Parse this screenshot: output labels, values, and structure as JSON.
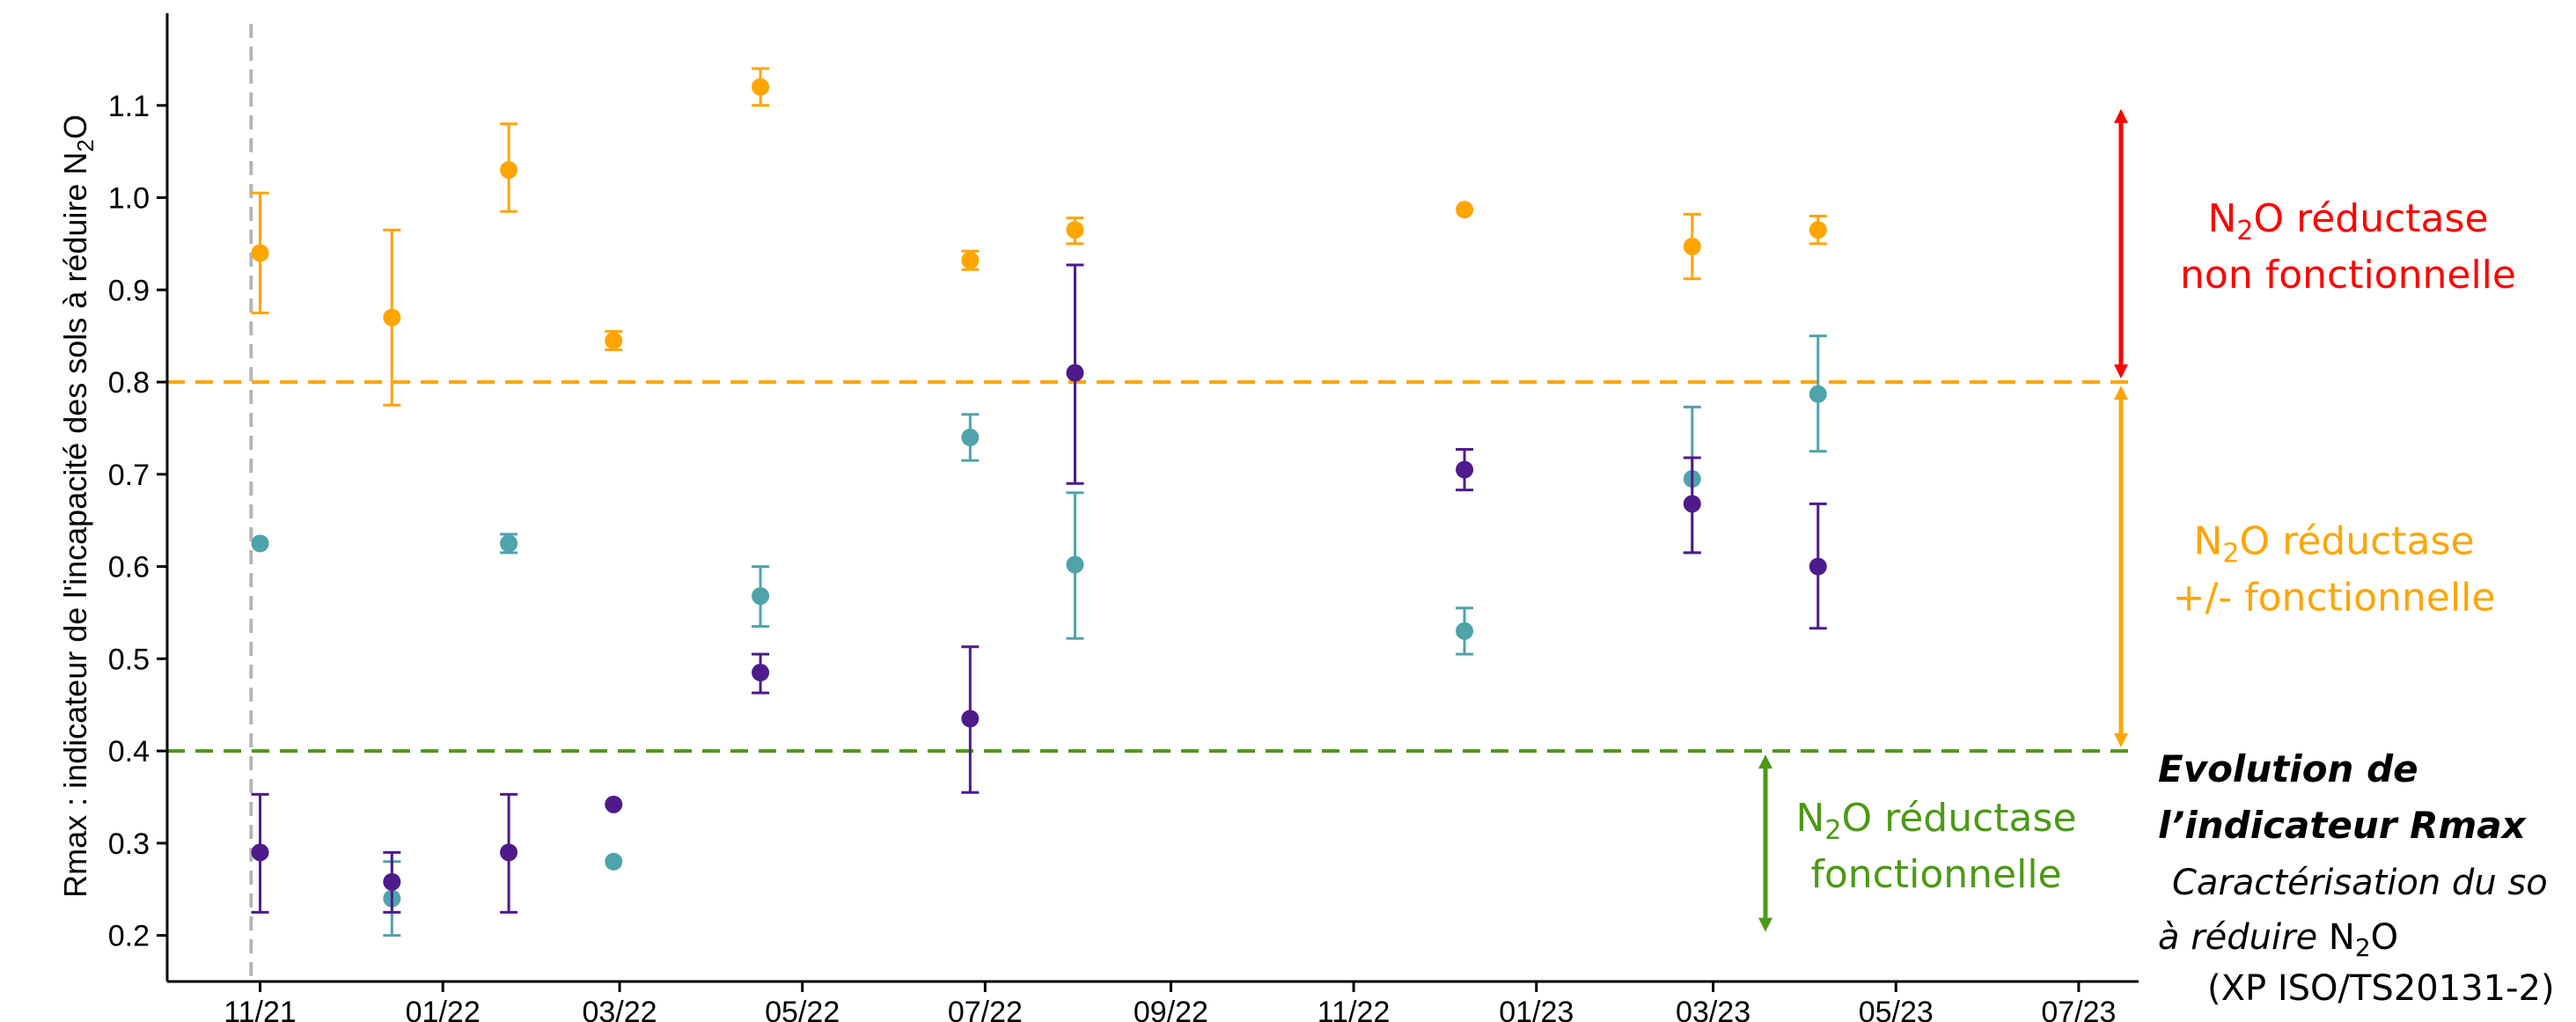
{
  "chart_data": {
    "type": "scatter",
    "ylabel_main": "Rmax : indicateur de l'incapacité des sols à réduire N",
    "ylabel_sub": "2",
    "ylabel_end": "O",
    "ylim": [
      0.15,
      1.2
    ],
    "yticks": [
      0.2,
      0.3,
      0.4,
      0.5,
      0.6,
      0.7,
      0.8,
      0.9,
      1.0,
      1.1
    ],
    "ytick_labels": [
      "0.2",
      "0.3",
      "0.4",
      "0.5",
      "0.6",
      "0.7",
      "0.8",
      "0.9",
      "1.0",
      "1.1"
    ],
    "xlim": [
      "2021-10-01",
      "2023-07-21"
    ],
    "xticks": [
      "2021-11-01",
      "2022-01-01",
      "2022-03-01",
      "2022-05-01",
      "2022-07-01",
      "2022-09-01",
      "2022-11-01",
      "2023-01-01",
      "2023-03-01",
      "2023-05-01",
      "2023-07-01"
    ],
    "xtick_labels": [
      "11/21",
      "01/22",
      "03/22",
      "05/22",
      "07/22",
      "09/22",
      "11/22",
      "01/23",
      "03/23",
      "05/23",
      "07/23"
    ],
    "vline_x": "2021-10-29",
    "thresholds": [
      {
        "y": 0.8,
        "color": "#FFA500"
      },
      {
        "y": 0.4,
        "color": "#4C9A14"
      }
    ],
    "series": [
      {
        "color": "#FFA500",
        "points": [
          {
            "x": "2021-11-01",
            "y": 0.94,
            "lo": 0.875,
            "hi": 1.005
          },
          {
            "x": "2021-12-15",
            "y": 0.87,
            "lo": 0.775,
            "hi": 0.965
          },
          {
            "x": "2022-01-23",
            "y": 1.03,
            "lo": 0.985,
            "hi": 1.08
          },
          {
            "x": "2022-02-27",
            "y": 0.845,
            "lo": 0.835,
            "hi": 0.855
          },
          {
            "x": "2022-04-17",
            "y": 1.12,
            "lo": 1.1,
            "hi": 1.14
          },
          {
            "x": "2022-06-26",
            "y": 0.932,
            "lo": 0.922,
            "hi": 0.942
          },
          {
            "x": "2022-07-31",
            "y": 0.965,
            "lo": 0.95,
            "hi": 0.978
          },
          {
            "x": "2022-12-08",
            "y": 0.987,
            "lo": 0.987,
            "hi": 0.987
          },
          {
            "x": "2023-02-22",
            "y": 0.947,
            "lo": 0.912,
            "hi": 0.982
          },
          {
            "x": "2023-04-05",
            "y": 0.965,
            "lo": 0.95,
            "hi": 0.98
          }
        ]
      },
      {
        "color": "#4FA3AB",
        "points": [
          {
            "x": "2021-11-01",
            "y": 0.625,
            "lo": 0.625,
            "hi": 0.625
          },
          {
            "x": "2021-12-15",
            "y": 0.24,
            "lo": 0.2,
            "hi": 0.28
          },
          {
            "x": "2022-01-23",
            "y": 0.625,
            "lo": 0.615,
            "hi": 0.635
          },
          {
            "x": "2022-02-27",
            "y": 0.28,
            "lo": 0.28,
            "hi": 0.28
          },
          {
            "x": "2022-04-17",
            "y": 0.568,
            "lo": 0.535,
            "hi": 0.6
          },
          {
            "x": "2022-06-26",
            "y": 0.74,
            "lo": 0.715,
            "hi": 0.765
          },
          {
            "x": "2022-07-31",
            "y": 0.602,
            "lo": 0.522,
            "hi": 0.68
          },
          {
            "x": "2022-12-08",
            "y": 0.53,
            "lo": 0.505,
            "hi": 0.555
          },
          {
            "x": "2023-02-22",
            "y": 0.695,
            "lo": 0.615,
            "hi": 0.773
          },
          {
            "x": "2023-04-05",
            "y": 0.787,
            "lo": 0.725,
            "hi": 0.85
          }
        ]
      },
      {
        "color": "#4E1A8C",
        "points": [
          {
            "x": "2021-11-01",
            "y": 0.29,
            "lo": 0.225,
            "hi": 0.353
          },
          {
            "x": "2021-12-15",
            "y": 0.258,
            "lo": 0.225,
            "hi": 0.29
          },
          {
            "x": "2022-01-23",
            "y": 0.29,
            "lo": 0.225,
            "hi": 0.353
          },
          {
            "x": "2022-02-27",
            "y": 0.342,
            "lo": 0.342,
            "hi": 0.342
          },
          {
            "x": "2022-04-17",
            "y": 0.485,
            "lo": 0.463,
            "hi": 0.505
          },
          {
            "x": "2022-06-26",
            "y": 0.435,
            "lo": 0.355,
            "hi": 0.513
          },
          {
            "x": "2022-07-31",
            "y": 0.81,
            "lo": 0.69,
            "hi": 0.927
          },
          {
            "x": "2022-12-08",
            "y": 0.705,
            "lo": 0.683,
            "hi": 0.727
          },
          {
            "x": "2023-02-22",
            "y": 0.668,
            "lo": 0.615,
            "hi": 0.718
          },
          {
            "x": "2023-04-05",
            "y": 0.6,
            "lo": 0.533,
            "hi": 0.668
          }
        ]
      }
    ],
    "zones": [
      {
        "color": "#FF0000",
        "range": [
          0.8,
          1.1
        ],
        "line1_pre": "N",
        "line1_sub": "2",
        "line1_post": "O réductase",
        "line2": "non fonctionnelle"
      },
      {
        "color": "#FFA500",
        "range": [
          0.4,
          0.8
        ],
        "line1_pre": "N",
        "line1_sub": "2",
        "line1_post": "O réductase",
        "line2": "+/- fonctionnelle"
      },
      {
        "color": "#4C9A14",
        "range": [
          0.2,
          0.4
        ],
        "line1_pre": "N",
        "line1_sub": "2",
        "line1_post": "O réductase",
        "line2": "fonctionnelle"
      }
    ]
  },
  "caption": {
    "title_line1": "Evolution de",
    "title_line2": "l’indicateur Rmax",
    "body_line1": "Caractérisation du so",
    "body_line2_pre": "à réduire ",
    "body_line2_n": "N",
    "body_line2_sub": "2",
    "body_line2_o": "O",
    "body_line3": "(XP ISO/TS20131-2)"
  }
}
